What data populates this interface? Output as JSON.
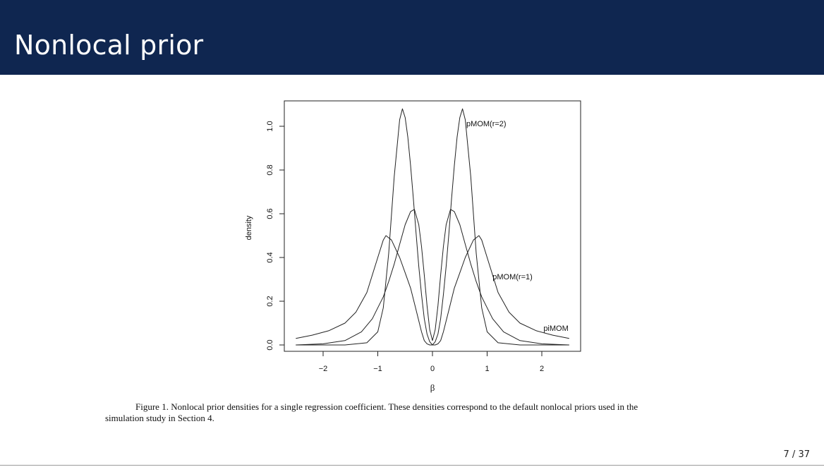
{
  "slide": {
    "title": "Nonlocal prior",
    "page_number": "7 / 37",
    "colors": {
      "title_bar": "#0f2650",
      "title_text": "#ffffff"
    }
  },
  "figure": {
    "caption_line1": "Figure 1.  Nonlocal prior densities for a single regression coefficient. These densities correspond to the default nonlocal priors used in the",
    "caption_line2": "simulation study in Section 4."
  },
  "chart_data": {
    "type": "line",
    "title": "",
    "xlabel": "β",
    "ylabel": "density",
    "xlim": [
      -2.5,
      2.5
    ],
    "ylim": [
      0.0,
      1.08
    ],
    "xticks": [
      -2,
      -1,
      0,
      1,
      2
    ],
    "xtick_labels": [
      "−2",
      "−1",
      "0",
      "1",
      "2"
    ],
    "yticks": [
      0.0,
      0.2,
      0.4,
      0.6,
      0.8,
      1.0
    ],
    "ytick_labels": [
      "0.0",
      "0.2",
      "0.4",
      "0.6",
      "0.8",
      "1.0"
    ],
    "grid": false,
    "legend": "none",
    "series": [
      {
        "name": "pMOM(r=2)",
        "x": [
          -2.5,
          -1.6,
          -1.2,
          -1.0,
          -0.9,
          -0.8,
          -0.7,
          -0.6,
          -0.55,
          -0.5,
          -0.45,
          -0.4,
          -0.35,
          -0.3,
          -0.25,
          -0.2,
          -0.15,
          -0.1,
          -0.05,
          0.0,
          0.05,
          0.1,
          0.15,
          0.2,
          0.25,
          0.3,
          0.35,
          0.4,
          0.45,
          0.5,
          0.55,
          0.6,
          0.7,
          0.8,
          0.9,
          1.0,
          1.2,
          1.6,
          2.5
        ],
        "y": [
          0.0,
          0.0,
          0.01,
          0.06,
          0.17,
          0.42,
          0.77,
          1.03,
          1.08,
          1.04,
          0.95,
          0.82,
          0.67,
          0.51,
          0.36,
          0.23,
          0.12,
          0.05,
          0.015,
          0.0,
          0.015,
          0.05,
          0.12,
          0.23,
          0.36,
          0.51,
          0.67,
          0.82,
          0.95,
          1.04,
          1.08,
          1.03,
          0.77,
          0.42,
          0.17,
          0.06,
          0.01,
          0.0,
          0.0
        ]
      },
      {
        "name": "pMOM(r=1)",
        "x": [
          -2.5,
          -2.0,
          -1.6,
          -1.3,
          -1.1,
          -1.0,
          -0.9,
          -0.8,
          -0.7,
          -0.6,
          -0.5,
          -0.4,
          -0.33,
          -0.25,
          -0.2,
          -0.15,
          -0.1,
          -0.05,
          0.0,
          0.05,
          0.1,
          0.15,
          0.2,
          0.25,
          0.33,
          0.4,
          0.5,
          0.6,
          0.7,
          0.8,
          0.9,
          1.0,
          1.1,
          1.3,
          1.6,
          2.0,
          2.5
        ],
        "y": [
          0.0,
          0.005,
          0.02,
          0.06,
          0.12,
          0.17,
          0.22,
          0.29,
          0.37,
          0.46,
          0.55,
          0.61,
          0.62,
          0.55,
          0.45,
          0.32,
          0.18,
          0.07,
          0.02,
          0.07,
          0.18,
          0.32,
          0.45,
          0.55,
          0.62,
          0.61,
          0.55,
          0.46,
          0.37,
          0.29,
          0.22,
          0.17,
          0.12,
          0.06,
          0.02,
          0.005,
          0.0
        ]
      },
      {
        "name": "piMOM",
        "x": [
          -2.5,
          -2.2,
          -1.9,
          -1.6,
          -1.4,
          -1.2,
          -1.0,
          -0.9,
          -0.85,
          -0.75,
          -0.6,
          -0.5,
          -0.4,
          -0.3,
          -0.2,
          -0.15,
          -0.1,
          -0.05,
          0.0,
          0.05,
          0.1,
          0.15,
          0.2,
          0.3,
          0.4,
          0.5,
          0.6,
          0.75,
          0.85,
          0.9,
          1.0,
          1.2,
          1.4,
          1.6,
          1.9,
          2.2,
          2.5
        ],
        "y": [
          0.03,
          0.045,
          0.065,
          0.1,
          0.15,
          0.24,
          0.4,
          0.48,
          0.5,
          0.48,
          0.4,
          0.33,
          0.26,
          0.16,
          0.06,
          0.02,
          0.005,
          0.0,
          0.0,
          0.0,
          0.005,
          0.02,
          0.06,
          0.16,
          0.26,
          0.33,
          0.4,
          0.48,
          0.5,
          0.48,
          0.4,
          0.24,
          0.15,
          0.1,
          0.065,
          0.045,
          0.03
        ]
      }
    ],
    "annotations": [
      {
        "text": "pMOM(r=2)",
        "x": 0.62,
        "y": 1.0
      },
      {
        "text": "pMOM(r=1)",
        "x": 1.1,
        "y": 0.3
      },
      {
        "text": "piMOM",
        "x": 2.03,
        "y": 0.065
      }
    ]
  }
}
